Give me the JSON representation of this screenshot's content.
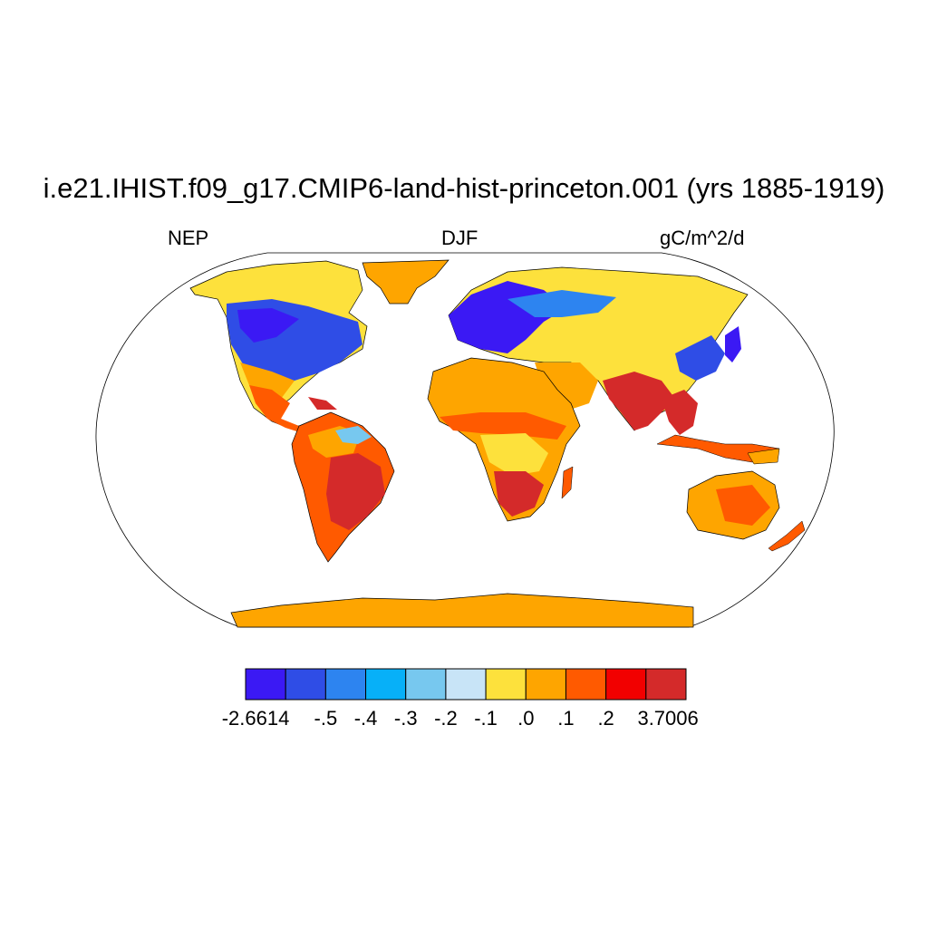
{
  "title": "i.e21.IHIST.f09_g17.CMIP6-land-hist-princeton.001 (yrs 1885-1919)",
  "subtitle": {
    "left": "NEP",
    "center": "DJF",
    "right": "gC/m^2/d"
  },
  "colorbar": {
    "colors": [
      "#3b19f4",
      "#2f4de6",
      "#2d84f0",
      "#07b0f8",
      "#77c8ef",
      "#c8e4f7",
      "#fde13c",
      "#fea500",
      "#ff5a00",
      "#f20000",
      "#d42a2a"
    ],
    "labels": [
      "-2.6614",
      "-.5",
      "-.4",
      "-.3",
      "-.2",
      "-.1",
      ".0",
      ".1",
      ".2",
      "3.7006"
    ]
  },
  "map": {
    "projection": "robinson",
    "ocean": "#ffffff",
    "coastline": "#000000"
  }
}
